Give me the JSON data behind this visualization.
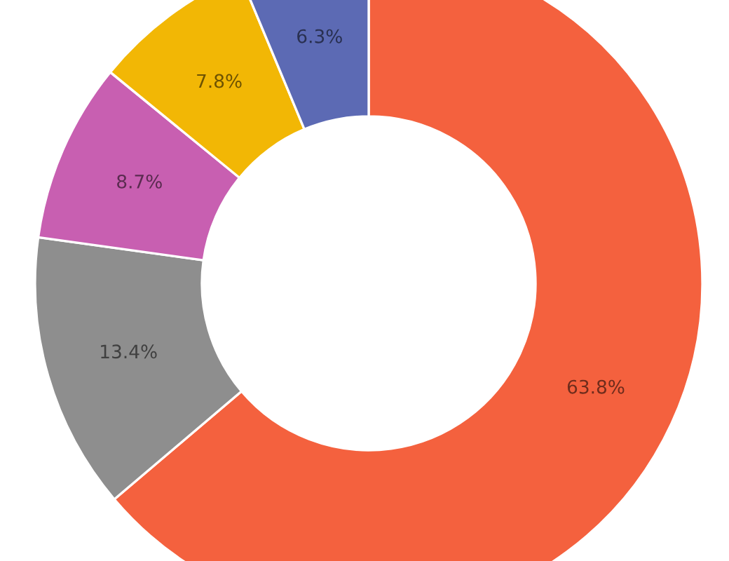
{
  "chart_data": {
    "type": "donut",
    "categories": [
      null,
      null,
      null,
      null,
      null
    ],
    "values": [
      63.8,
      13.4,
      8.7,
      7.8,
      6.3
    ],
    "colors": [
      "#f4613e",
      "#8e8e8e",
      "#c85fb1",
      "#f2b705",
      "#5c6ab4"
    ],
    "value_labels": [
      "63.8%",
      "13.4%",
      "8.7%",
      "7.8%",
      "6.3%"
    ]
  }
}
